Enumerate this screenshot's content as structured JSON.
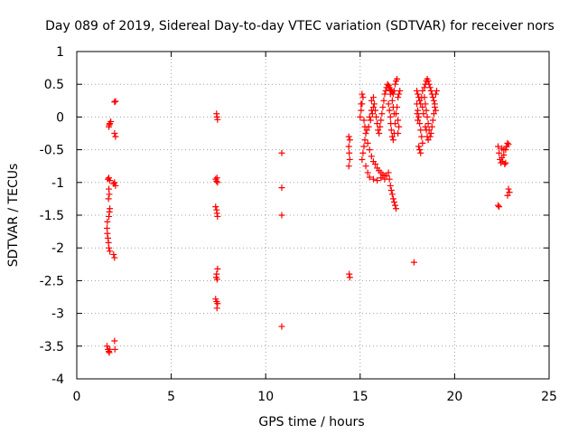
{
  "chart_data": {
    "type": "scatter",
    "title": "Day 089 of 2019, Sidereal Day-to-day VTEC variation (SDTVAR) for receiver nors",
    "xlabel": "GPS time / hours",
    "ylabel": "SDTVAR / TECUs",
    "xlim": [
      0,
      25
    ],
    "ylim": [
      -4,
      1
    ],
    "xticks": [
      0,
      5,
      10,
      15,
      20,
      25
    ],
    "xtick_labels": [
      "0",
      "5",
      "10",
      "15",
      "20",
      "25"
    ],
    "yticks": [
      1,
      0.5,
      0,
      -0.5,
      -1,
      -1.5,
      -2,
      -2.5,
      -3,
      -3.5,
      -4
    ],
    "ytick_labels": [
      "1",
      "0.5",
      "0",
      "-0.5",
      "-1",
      "-1.5",
      "-2",
      "-2.5",
      "-3",
      "-3.5",
      "-4"
    ],
    "grid": true,
    "marker": "+",
    "series": [
      {
        "name": "SDTVAR",
        "color": "#ff0000",
        "points": [
          [
            1.7,
            -0.15
          ],
          [
            1.75,
            -0.1
          ],
          [
            1.8,
            -0.07
          ],
          [
            1.72,
            -0.12
          ],
          [
            2.0,
            0.23
          ],
          [
            2.05,
            0.24
          ],
          [
            2.0,
            -0.25
          ],
          [
            2.05,
            -0.3
          ],
          [
            1.65,
            -0.95
          ],
          [
            1.7,
            -0.93
          ],
          [
            1.75,
            -0.97
          ],
          [
            2.0,
            -1.0
          ],
          [
            2.05,
            -1.05
          ],
          [
            1.95,
            -1.02
          ],
          [
            1.7,
            -1.1
          ],
          [
            1.72,
            -1.18
          ],
          [
            1.68,
            -1.25
          ],
          [
            1.75,
            -1.4
          ],
          [
            1.73,
            -1.45
          ],
          [
            1.7,
            -1.52
          ],
          [
            1.62,
            -1.6
          ],
          [
            1.6,
            -1.7
          ],
          [
            1.62,
            -1.78
          ],
          [
            1.65,
            -1.85
          ],
          [
            1.68,
            -1.92
          ],
          [
            1.7,
            -2.0
          ],
          [
            1.75,
            -2.05
          ],
          [
            1.95,
            -2.1
          ],
          [
            2.0,
            -2.15
          ],
          [
            1.6,
            -3.5
          ],
          [
            1.65,
            -3.55
          ],
          [
            1.7,
            -3.58
          ],
          [
            1.75,
            -3.55
          ],
          [
            1.72,
            -3.6
          ],
          [
            2.0,
            -3.42
          ],
          [
            2.02,
            -3.55
          ],
          [
            7.4,
            0.05
          ],
          [
            7.42,
            0.0
          ],
          [
            7.45,
            -0.04
          ],
          [
            7.35,
            -0.95
          ],
          [
            7.4,
            -0.98
          ],
          [
            7.45,
            -1.0
          ],
          [
            7.42,
            -0.93
          ],
          [
            7.35,
            -1.37
          ],
          [
            7.4,
            -1.42
          ],
          [
            7.42,
            -1.47
          ],
          [
            7.45,
            -1.52
          ],
          [
            7.45,
            -2.32
          ],
          [
            7.4,
            -2.4
          ],
          [
            7.38,
            -2.45
          ],
          [
            7.43,
            -2.48
          ],
          [
            7.35,
            -2.78
          ],
          [
            7.4,
            -2.82
          ],
          [
            7.45,
            -2.85
          ],
          [
            7.42,
            -2.92
          ],
          [
            10.85,
            -0.55
          ],
          [
            10.85,
            -1.08
          ],
          [
            10.85,
            -1.5
          ],
          [
            10.85,
            -3.2
          ],
          [
            14.4,
            -0.3
          ],
          [
            14.45,
            -0.35
          ],
          [
            14.4,
            -0.45
          ],
          [
            14.42,
            -0.55
          ],
          [
            14.45,
            -0.65
          ],
          [
            14.4,
            -0.75
          ],
          [
            14.42,
            -2.4
          ],
          [
            14.45,
            -2.45
          ],
          [
            15.0,
            0.0
          ],
          [
            15.05,
            0.1
          ],
          [
            15.1,
            0.2
          ],
          [
            15.15,
            0.3
          ],
          [
            15.1,
            0.35
          ],
          [
            15.05,
            0.2
          ],
          [
            15.2,
            -0.05
          ],
          [
            15.25,
            -0.15
          ],
          [
            15.3,
            -0.25
          ],
          [
            15.25,
            -0.35
          ],
          [
            15.2,
            -0.45
          ],
          [
            15.15,
            -0.55
          ],
          [
            15.1,
            -0.65
          ],
          [
            15.3,
            -0.75
          ],
          [
            15.4,
            -0.85
          ],
          [
            15.5,
            -0.92
          ],
          [
            15.7,
            -0.95
          ],
          [
            15.9,
            -0.97
          ],
          [
            16.1,
            -0.93
          ],
          [
            16.3,
            -0.95
          ],
          [
            16.4,
            -0.9
          ],
          [
            16.5,
            -0.85
          ],
          [
            16.55,
            -0.95
          ],
          [
            16.6,
            -1.05
          ],
          [
            16.65,
            -1.12
          ],
          [
            16.7,
            -1.18
          ],
          [
            16.75,
            -1.25
          ],
          [
            16.8,
            -1.3
          ],
          [
            16.85,
            -1.35
          ],
          [
            16.9,
            -1.4
          ],
          [
            15.4,
            -0.4
          ],
          [
            15.5,
            -0.5
          ],
          [
            15.6,
            -0.6
          ],
          [
            15.7,
            -0.68
          ],
          [
            15.8,
            -0.72
          ],
          [
            15.9,
            -0.78
          ],
          [
            16.0,
            -0.82
          ],
          [
            16.1,
            -0.85
          ],
          [
            16.2,
            -0.88
          ],
          [
            16.3,
            -0.9
          ],
          [
            15.5,
            0.0
          ],
          [
            15.6,
            0.1
          ],
          [
            15.7,
            0.15
          ],
          [
            15.75,
            0.2
          ],
          [
            15.8,
            0.1
          ],
          [
            15.85,
            0.0
          ],
          [
            15.9,
            -0.1
          ],
          [
            15.95,
            -0.2
          ],
          [
            16.0,
            -0.25
          ],
          [
            16.05,
            -0.15
          ],
          [
            16.1,
            -0.05
          ],
          [
            16.15,
            0.05
          ],
          [
            16.2,
            0.15
          ],
          [
            16.25,
            0.25
          ],
          [
            16.3,
            0.35
          ],
          [
            16.35,
            0.4
          ],
          [
            16.4,
            0.45
          ],
          [
            16.45,
            0.5
          ],
          [
            16.5,
            0.48
          ],
          [
            16.55,
            0.45
          ],
          [
            16.6,
            0.42
          ],
          [
            16.65,
            0.4
          ],
          [
            16.7,
            0.38
          ],
          [
            16.75,
            0.35
          ],
          [
            16.8,
            0.4
          ],
          [
            16.85,
            0.5
          ],
          [
            16.9,
            0.55
          ],
          [
            16.95,
            0.58
          ],
          [
            16.5,
            0.2
          ],
          [
            16.55,
            0.1
          ],
          [
            16.6,
            0.0
          ],
          [
            16.62,
            -0.1
          ],
          [
            16.65,
            -0.2
          ],
          [
            16.7,
            -0.3
          ],
          [
            16.75,
            -0.35
          ],
          [
            16.8,
            -0.25
          ],
          [
            16.85,
            -0.1
          ],
          [
            16.9,
            0.05
          ],
          [
            16.95,
            0.15
          ],
          [
            17.0,
            0.3
          ],
          [
            17.05,
            0.35
          ],
          [
            17.1,
            0.4
          ],
          [
            17.0,
            -0.05
          ],
          [
            17.05,
            -0.15
          ],
          [
            17.0,
            -0.25
          ],
          [
            15.6,
            0.25
          ],
          [
            15.7,
            0.3
          ],
          [
            15.65,
            0.05
          ],
          [
            15.55,
            -0.05
          ],
          [
            15.45,
            -0.15
          ],
          [
            15.35,
            -0.2
          ],
          [
            16.6,
            0.35
          ],
          [
            16.7,
            0.25
          ],
          [
            16.75,
            0.15
          ],
          [
            16.8,
            0.05
          ],
          [
            18.0,
            0.4
          ],
          [
            18.05,
            0.35
          ],
          [
            18.1,
            0.3
          ],
          [
            18.15,
            0.25
          ],
          [
            18.2,
            0.2
          ],
          [
            18.25,
            0.3
          ],
          [
            18.3,
            0.4
          ],
          [
            18.05,
            0.1
          ],
          [
            18.1,
            0.0
          ],
          [
            18.15,
            -0.1
          ],
          [
            18.2,
            -0.2
          ],
          [
            18.25,
            -0.3
          ],
          [
            18.3,
            -0.4
          ],
          [
            18.1,
            -0.45
          ],
          [
            18.15,
            -0.5
          ],
          [
            18.2,
            -0.55
          ],
          [
            18.0,
            0.2
          ],
          [
            18.02,
            0.05
          ],
          [
            18.05,
            -0.05
          ],
          [
            18.4,
            0.45
          ],
          [
            18.45,
            0.5
          ],
          [
            18.5,
            0.55
          ],
          [
            18.55,
            0.58
          ],
          [
            18.6,
            0.55
          ],
          [
            18.65,
            0.5
          ],
          [
            18.7,
            0.45
          ],
          [
            18.75,
            0.4
          ],
          [
            18.8,
            0.35
          ],
          [
            18.85,
            0.3
          ],
          [
            18.9,
            0.25
          ],
          [
            18.95,
            0.2
          ],
          [
            18.4,
            0.3
          ],
          [
            18.45,
            0.2
          ],
          [
            18.5,
            0.1
          ],
          [
            18.55,
            0.0
          ],
          [
            18.6,
            -0.1
          ],
          [
            18.65,
            -0.2
          ],
          [
            18.7,
            -0.3
          ],
          [
            18.75,
            -0.25
          ],
          [
            18.8,
            -0.15
          ],
          [
            18.85,
            -0.05
          ],
          [
            18.9,
            0.05
          ],
          [
            18.95,
            0.15
          ],
          [
            18.5,
            -0.2
          ],
          [
            18.55,
            -0.3
          ],
          [
            18.6,
            -0.35
          ],
          [
            18.45,
            -0.15
          ],
          [
            18.35,
            0.05
          ],
          [
            18.3,
            0.15
          ],
          [
            19.0,
            0.35
          ],
          [
            19.05,
            0.4
          ],
          [
            19.0,
            0.1
          ],
          [
            17.85,
            -2.22
          ],
          [
            22.3,
            -1.35
          ],
          [
            22.35,
            -1.37
          ],
          [
            22.3,
            -0.45
          ],
          [
            22.35,
            -0.55
          ],
          [
            22.4,
            -0.65
          ],
          [
            22.45,
            -0.7
          ],
          [
            22.5,
            -0.62
          ],
          [
            22.55,
            -0.68
          ],
          [
            22.6,
            -0.58
          ],
          [
            22.65,
            -0.72
          ],
          [
            22.7,
            -0.5
          ],
          [
            22.75,
            -0.45
          ],
          [
            22.8,
            -0.4
          ],
          [
            22.85,
            -0.42
          ],
          [
            22.5,
            -0.48
          ],
          [
            22.6,
            -0.5
          ],
          [
            22.7,
            -0.7
          ],
          [
            22.85,
            -1.1
          ],
          [
            22.9,
            -1.15
          ],
          [
            22.8,
            -1.2
          ]
        ]
      }
    ]
  }
}
